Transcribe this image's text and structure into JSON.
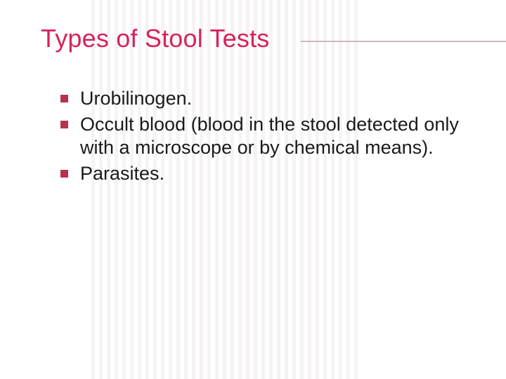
{
  "slide": {
    "title": "Types of Stool Tests",
    "title_color": "#d6235a",
    "title_fontsize": 36,
    "rule_color": "#cfb9bd",
    "body_fontsize": 27,
    "body_color": "#1a1a1a",
    "bullet_color": "#b8324f",
    "bullet_size": 11,
    "background_color": "#ffffff",
    "stripe_color": "#f6f3f4",
    "bullets": [
      {
        "text": "Urobilinogen."
      },
      {
        "text": "Occult blood (blood in the stool detected only with a microscope or by chemical means)."
      },
      {
        "text": "Parasites."
      }
    ]
  }
}
